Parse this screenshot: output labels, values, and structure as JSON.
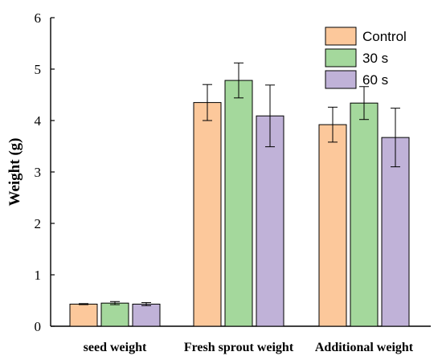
{
  "chart_data": {
    "type": "bar",
    "title": "",
    "xlabel": "",
    "ylabel": "Weight (g)",
    "ylim": [
      0,
      6
    ],
    "yticks": [
      "0",
      "1",
      "2",
      "3",
      "4",
      "5",
      "6"
    ],
    "categories": [
      "seed weight",
      "Fresh sprout weight",
      "Additional weight"
    ],
    "series": [
      {
        "name": "Control",
        "color": "#fcc89b",
        "values": [
          0.43,
          4.35,
          3.92
        ],
        "errors": [
          0.01,
          0.35,
          0.34
        ]
      },
      {
        "name": "30 s",
        "color": "#a4d89c",
        "values": [
          0.45,
          4.78,
          4.34
        ],
        "errors": [
          0.03,
          0.34,
          0.32
        ]
      },
      {
        "name": "60 s",
        "color": "#c0b2d8",
        "values": [
          0.43,
          4.09,
          3.67
        ],
        "errors": [
          0.03,
          0.6,
          0.57
        ]
      }
    ],
    "legend_position": "top-right",
    "grid": false
  }
}
